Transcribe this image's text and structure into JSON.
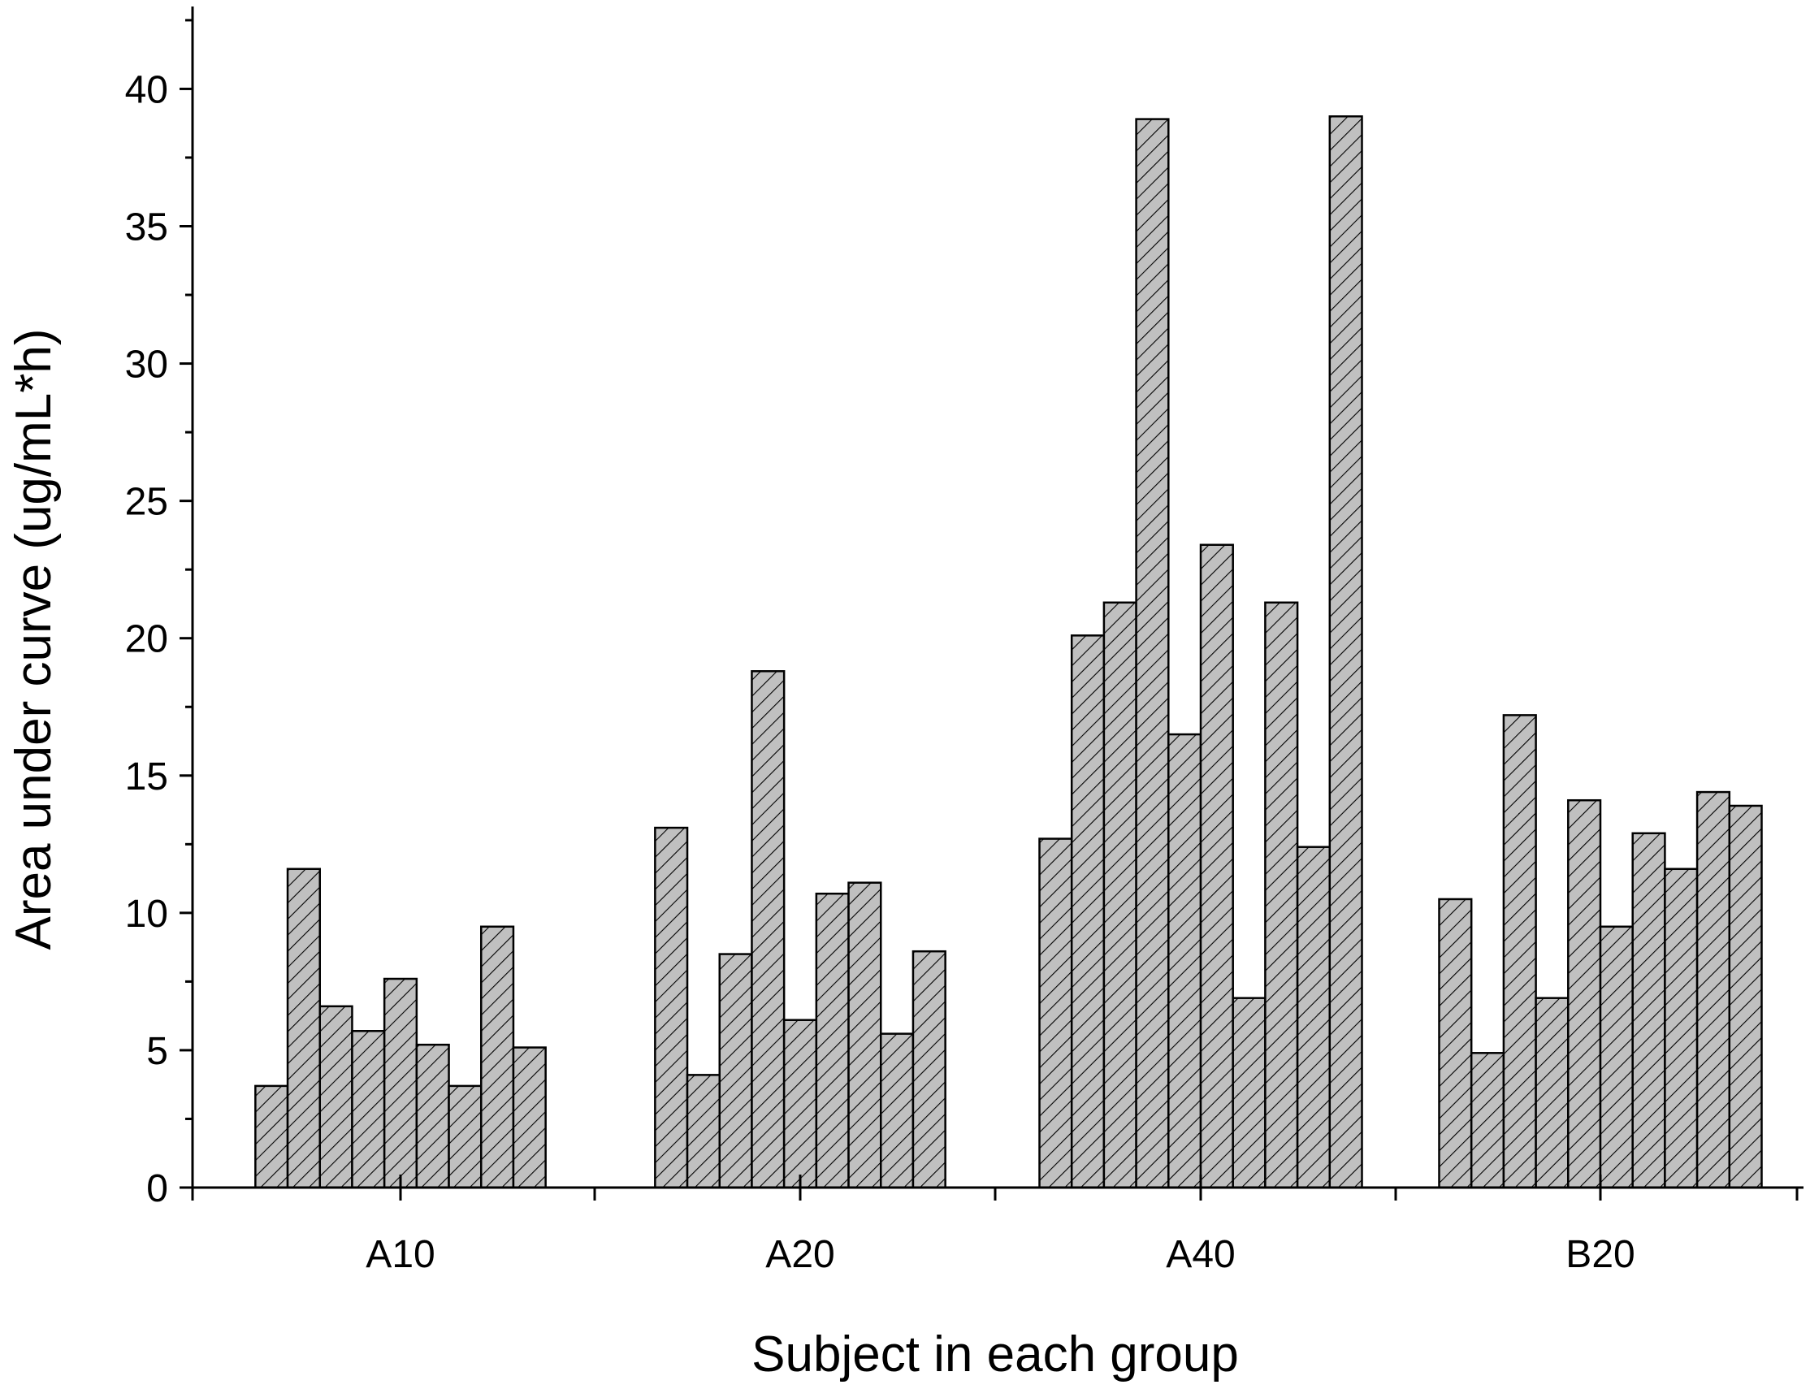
{
  "chart_data": {
    "type": "bar",
    "title": "",
    "xlabel": "Subject in each group",
    "ylabel": "Area under curve (ug/mL*h)",
    "ylim": [
      0,
      43
    ],
    "yticks": [
      0,
      5,
      10,
      15,
      20,
      25,
      30,
      35,
      40
    ],
    "categories": [
      "A10",
      "A20",
      "A40",
      "B20"
    ],
    "groups": [
      {
        "name": "A10",
        "values": [
          3.7,
          11.6,
          6.6,
          5.7,
          7.6,
          5.2,
          3.7,
          9.5,
          5.1
        ]
      },
      {
        "name": "A20",
        "values": [
          13.1,
          4.1,
          8.5,
          18.8,
          6.1,
          10.7,
          11.1,
          5.6,
          8.6
        ]
      },
      {
        "name": "A40",
        "values": [
          12.7,
          20.1,
          21.3,
          38.9,
          16.5,
          23.4,
          6.9,
          21.3,
          12.4,
          39.0
        ]
      },
      {
        "name": "B20",
        "values": [
          10.5,
          4.9,
          17.2,
          6.9,
          14.1,
          9.5,
          12.9,
          11.6,
          14.4,
          13.9
        ]
      }
    ],
    "bar_fill": "#c0c0c0",
    "hatch_color": "#000000",
    "grid": false,
    "legend": "none"
  }
}
